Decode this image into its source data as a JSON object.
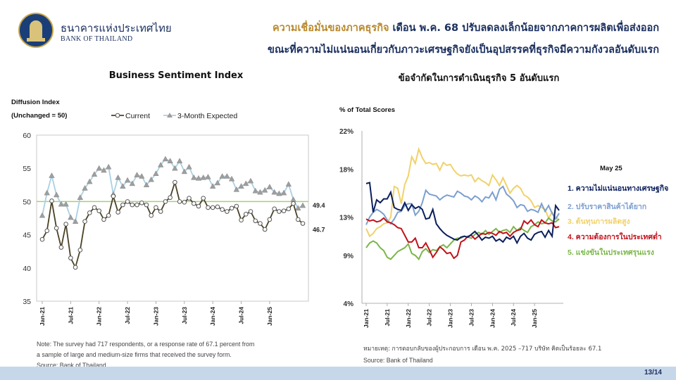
{
  "header": {
    "org_thai": "ธนาคารแห่งประเทศไทย",
    "org_en": "BANK OF THAILAND",
    "headline_line1_accent": "ความเชื่อมั่นของภาคธุรกิจ",
    "headline_line1_rest": " เดือน พ.ค. 68 ปรับลดลงเล็กน้อยจากภาคการผลิตเพื่อส่งออก",
    "headline_line2": "ขณะที่ความไม่แน่นอนเกี่ยวกับภาวะเศรษฐกิจยังเป็นอุปสรรคที่ธุรกิจมีความกังวลอันดับแรก"
  },
  "left_panel": {
    "title": "Business Sentiment Index",
    "yaxis_title_1": "Diffusion Index",
    "yaxis_title_2": "(Unchanged = 50)",
    "note_1": "Note: The survey had 717 respondents, or a response rate of 67.1 percent from",
    "note_2": "a sample of large and medium-size firms that received the survey form.",
    "source": "Source: Bank of Thailand"
  },
  "right_panel": {
    "title": "ข้อจำกัดในการดำเนินธุรกิจ 5 อันดับแรก",
    "yaxis_title": "% of Total Scores",
    "legend_title": "May 25",
    "note": "หมายเหตุ: การตอบกลับของผู้ประกอบการ เดือน พ.ค. 2025 –717 บริษัท คิดเป็นร้อยละ 67.1",
    "source": "Source: Bank of Thailand"
  },
  "footer": {
    "page": "13/14"
  },
  "chart_data": [
    {
      "type": "line",
      "title": "Business Sentiment Index",
      "ylabel": "Diffusion Index (Unchanged = 50)",
      "ylim": [
        35,
        60
      ],
      "yticks": [
        35,
        40,
        45,
        50,
        55,
        60
      ],
      "x_start": "2021-01",
      "xticks": [
        "Jan-21",
        "Jul-21",
        "Jan-22",
        "Jul-22",
        "Jan-23",
        "Jul-23",
        "Jan-24",
        "Jul-24",
        "Jan-25"
      ],
      "reference_line": 50,
      "series": [
        {
          "name": "Current",
          "color": "#4a4125",
          "last_label": "46.7",
          "values": [
            44.3,
            45.6,
            50.1,
            46.0,
            43.1,
            46.6,
            41.5,
            40.1,
            42.7,
            47.0,
            48.3,
            49.1,
            48.6,
            47.3,
            47.9,
            50.8,
            48.4,
            49.5,
            50.0,
            49.5,
            49.5,
            49.8,
            49.5,
            47.9,
            49.1,
            48.5,
            50.0,
            50.6,
            52.9,
            50.0,
            49.9,
            50.5,
            49.7,
            49.3,
            50.5,
            49.1,
            49.1,
            49.2,
            48.8,
            48.5,
            49.0,
            49.3,
            47.2,
            48.1,
            48.5,
            47.1,
            46.7,
            45.8,
            47.3,
            48.9,
            48.5,
            48.6,
            48.9,
            49.7,
            47.3,
            46.7
          ]
        },
        {
          "name": "3-Month Expected",
          "color": "#a9d0e4",
          "last_label": "49.4",
          "values": [
            47.9,
            51.3,
            53.9,
            51.0,
            49.6,
            49.6,
            47.6,
            47.0,
            50.6,
            52.0,
            53.0,
            54.1,
            55.0,
            54.7,
            55.2,
            51.1,
            53.6,
            52.3,
            53.2,
            52.7,
            54.0,
            53.8,
            52.5,
            53.3,
            54.2,
            55.5,
            56.4,
            56.1,
            55.0,
            56.1,
            54.5,
            55.2,
            53.6,
            53.5,
            53.6,
            53.7,
            52.3,
            52.8,
            53.8,
            53.8,
            53.4,
            51.8,
            52.3,
            52.7,
            53.1,
            51.6,
            51.4,
            51.7,
            52.2,
            51.4,
            51.2,
            51.3,
            52.6,
            50.3,
            49.0,
            49.4
          ]
        }
      ]
    },
    {
      "type": "line",
      "title": "ข้อจำกัดในการดำเนินธุรกิจ 5 อันดับแรก",
      "ylabel": "% of Total Scores",
      "ylim": [
        4,
        22
      ],
      "yticks": [
        "4%",
        "9%",
        "13%",
        "18%",
        "22%"
      ],
      "ytick_values": [
        4,
        9,
        13,
        18,
        22
      ],
      "x_start": "2021-01",
      "xticks": [
        "Jan-21",
        "Jul-21",
        "Jan-22",
        "Jul-22",
        "Jan-23",
        "Jul-23",
        "Jan-24",
        "Jul-24",
        "Jan-25"
      ],
      "series": [
        {
          "name": "1. ความไม่แน่นอนทางเศรษฐกิจ",
          "color": "#0b1f5c",
          "values": [
            16.5,
            16.6,
            13.5,
            14.8,
            14.5,
            14.9,
            14.9,
            15.6,
            14.0,
            13.8,
            13.7,
            14.5,
            13.7,
            14.3,
            13.9,
            14.1,
            13.8,
            12.8,
            12.9,
            13.8,
            12.3,
            11.8,
            11.4,
            11.1,
            10.9,
            10.7,
            10.6,
            10.9,
            11.0,
            10.9,
            11.2,
            11.5,
            11.1,
            10.6,
            10.9,
            10.8,
            11.0,
            10.5,
            10.7,
            10.4,
            10.9,
            10.7,
            11.0,
            10.3,
            11.0,
            11.3,
            10.8,
            10.6,
            11.2,
            11.4,
            11.5,
            10.9,
            11.6,
            11.0,
            14.2,
            13.7
          ]
        },
        {
          "name": "2. ปรับราคาสินค้าได้ยาก",
          "color": "#7c9fd0",
          "values": [
            12.2,
            13.0,
            13.5,
            13.8,
            13.6,
            13.3,
            12.7,
            12.3,
            12.8,
            13.5,
            13.6,
            14.2,
            14.4,
            14.4,
            13.2,
            13.6,
            14.5,
            15.8,
            15.4,
            15.3,
            15.2,
            14.8,
            15.1,
            15.3,
            15.2,
            15.1,
            15.7,
            15.5,
            15.2,
            15.1,
            14.8,
            15.2,
            15.0,
            14.6,
            15.1,
            15.0,
            15.6,
            14.8,
            15.9,
            16.2,
            15.4,
            15.1,
            14.7,
            14.0,
            14.3,
            14.2,
            13.6,
            13.8,
            13.7,
            13.5,
            14.4,
            13.6,
            14.2,
            13.4,
            12.8,
            13.4
          ]
        },
        {
          "name": "3. ต้นทุนการผลิตสูง",
          "color": "#f0d26a",
          "values": [
            11.8,
            11.0,
            11.3,
            11.8,
            12.0,
            12.3,
            12.4,
            13.0,
            16.2,
            16.0,
            14.4,
            16.4,
            17.3,
            19.3,
            18.6,
            20.1,
            19.2,
            18.6,
            18.7,
            18.5,
            18.6,
            17.9,
            18.7,
            18.4,
            18.5,
            17.9,
            17.5,
            17.3,
            17.4,
            17.3,
            17.4,
            16.7,
            17.1,
            16.8,
            16.6,
            16.3,
            17.4,
            16.9,
            16.3,
            17.1,
            16.3,
            15.5,
            16.0,
            16.3,
            16.0,
            15.3,
            15.1,
            14.7,
            14.0,
            14.2,
            14.0,
            13.8,
            12.9,
            13.5,
            13.0,
            12.7
          ]
        },
        {
          "name": "4. ความต้องการในประเทศต่ำ",
          "color": "#c1121b",
          "values": [
            12.8,
            12.6,
            12.7,
            12.5,
            12.6,
            12.9,
            12.5,
            12.4,
            12.2,
            11.9,
            11.8,
            11.1,
            10.4,
            10.4,
            10.8,
            9.8,
            9.8,
            10.3,
            9.6,
            8.8,
            9.3,
            9.9,
            9.6,
            9.2,
            9.3,
            8.7,
            9.0,
            10.4,
            10.6,
            11.0,
            11.1,
            10.7,
            11.0,
            11.3,
            11.2,
            11.4,
            11.3,
            11.1,
            11.5,
            11.3,
            11.4,
            11.0,
            11.4,
            11.6,
            11.7,
            12.6,
            12.3,
            12.7,
            12.2,
            12.0,
            12.7,
            12.4,
            12.3,
            12.4,
            11.9,
            12.0
          ]
        },
        {
          "name": "5. แข่งขันในประเทศรุนแรง",
          "color": "#7ab648",
          "values": [
            9.8,
            10.3,
            10.5,
            10.3,
            9.8,
            9.5,
            8.8,
            8.6,
            9.0,
            9.4,
            9.6,
            9.8,
            10.2,
            9.2,
            9.0,
            8.6,
            9.4,
            9.7,
            9.3,
            9.6,
            9.5,
            9.9,
            10.1,
            9.8,
            10.2,
            10.6,
            10.8,
            10.8,
            11.0,
            10.9,
            10.8,
            11.2,
            11.4,
            11.2,
            11.6,
            11.2,
            11.5,
            11.8,
            11.4,
            11.6,
            11.7,
            11.4,
            12.0,
            11.6,
            11.9,
            11.6,
            11.4,
            12.0,
            12.2,
            12.5,
            12.3,
            12.4,
            12.9,
            12.6,
            12.5,
            12.8
          ]
        }
      ]
    }
  ]
}
